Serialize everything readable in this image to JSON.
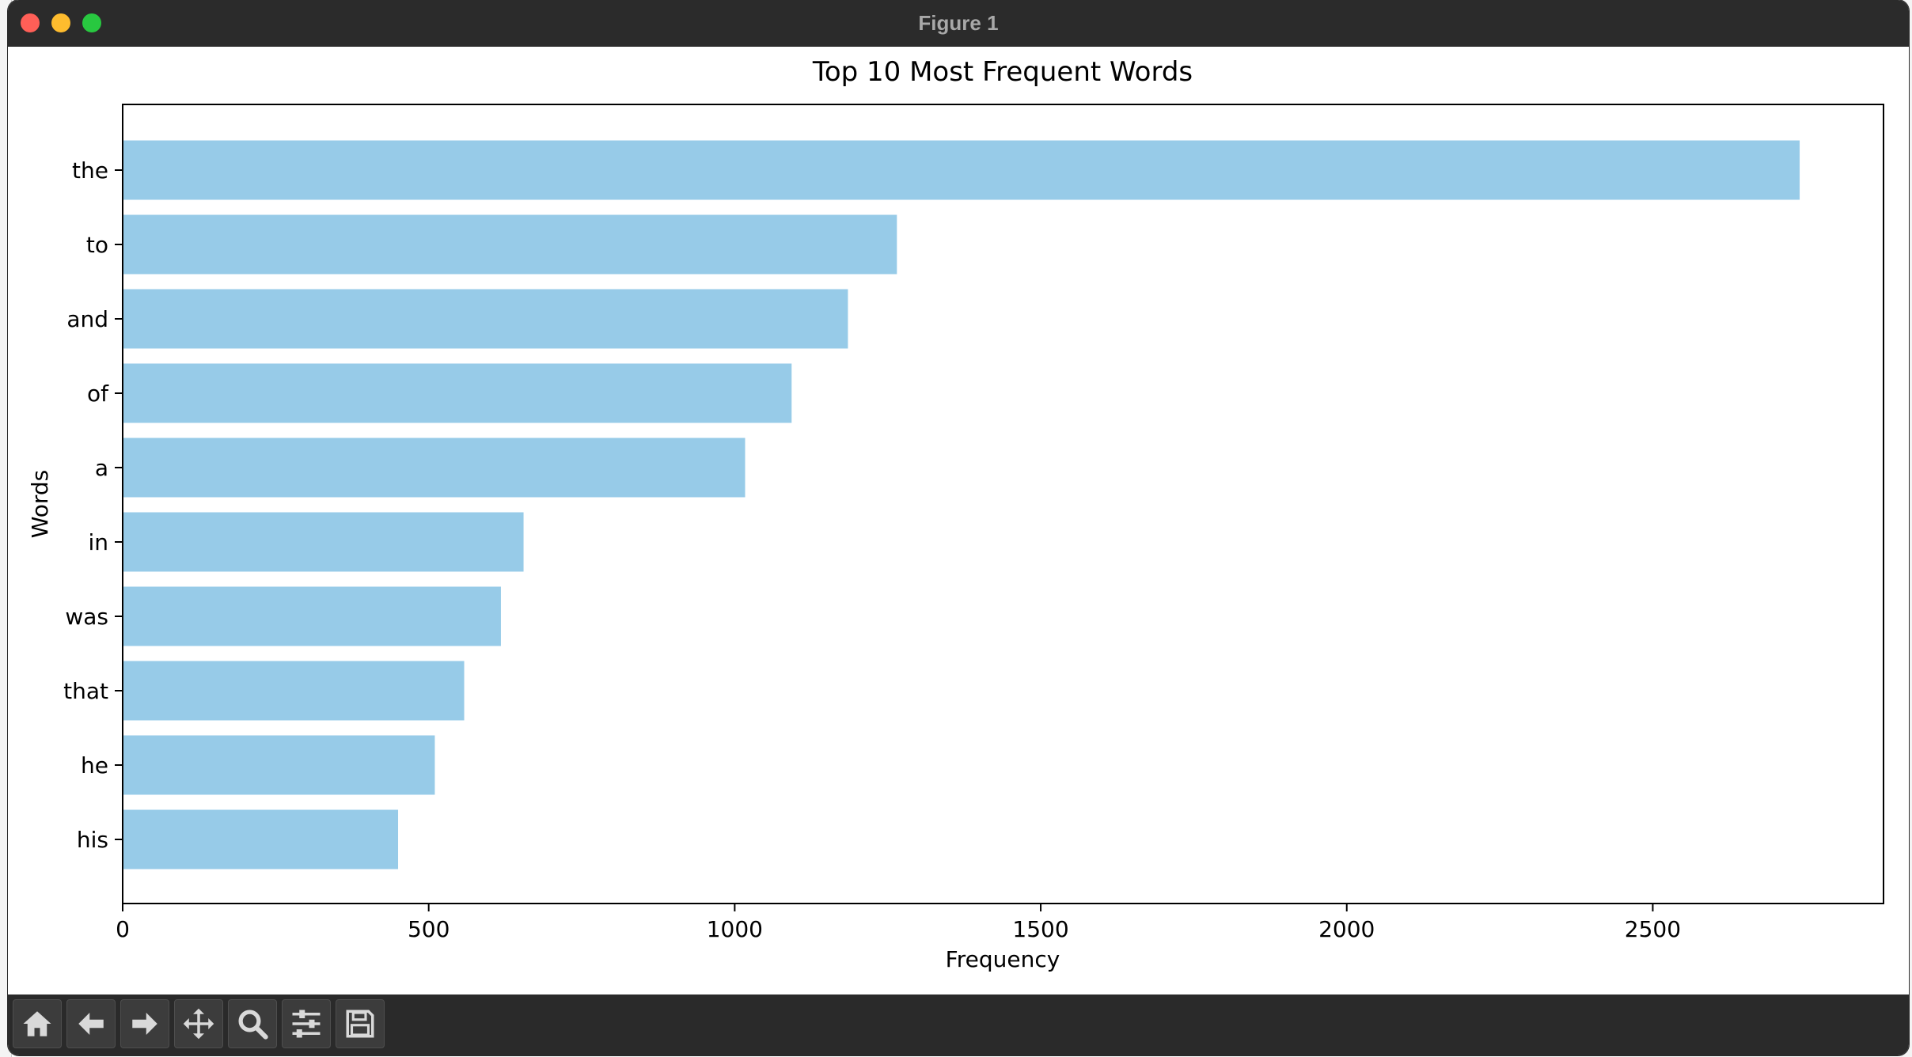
{
  "window": {
    "title": "Figure 1"
  },
  "toolbar": {
    "tools": [
      {
        "name": "home-icon"
      },
      {
        "name": "back-arrow-icon"
      },
      {
        "name": "forward-arrow-icon"
      },
      {
        "name": "pan-move-icon"
      },
      {
        "name": "zoom-magnifier-icon"
      },
      {
        "name": "configure-subplots-icon"
      },
      {
        "name": "save-disk-icon"
      }
    ]
  },
  "chart_data": {
    "type": "bar",
    "orientation": "horizontal",
    "title": "Top 10 Most Frequent Words",
    "xlabel": "Frequency",
    "ylabel": "Words",
    "categories": [
      "the",
      "to",
      "and",
      "of",
      "a",
      "in",
      "was",
      "that",
      "he",
      "his"
    ],
    "values": [
      2740,
      1265,
      1185,
      1093,
      1017,
      655,
      618,
      558,
      510,
      450
    ],
    "xlim": [
      0,
      2877
    ],
    "xticks": [
      0,
      500,
      1000,
      1500,
      2000,
      2500
    ],
    "bar_color": "#97cbe8",
    "grid": false,
    "legend": "none"
  }
}
